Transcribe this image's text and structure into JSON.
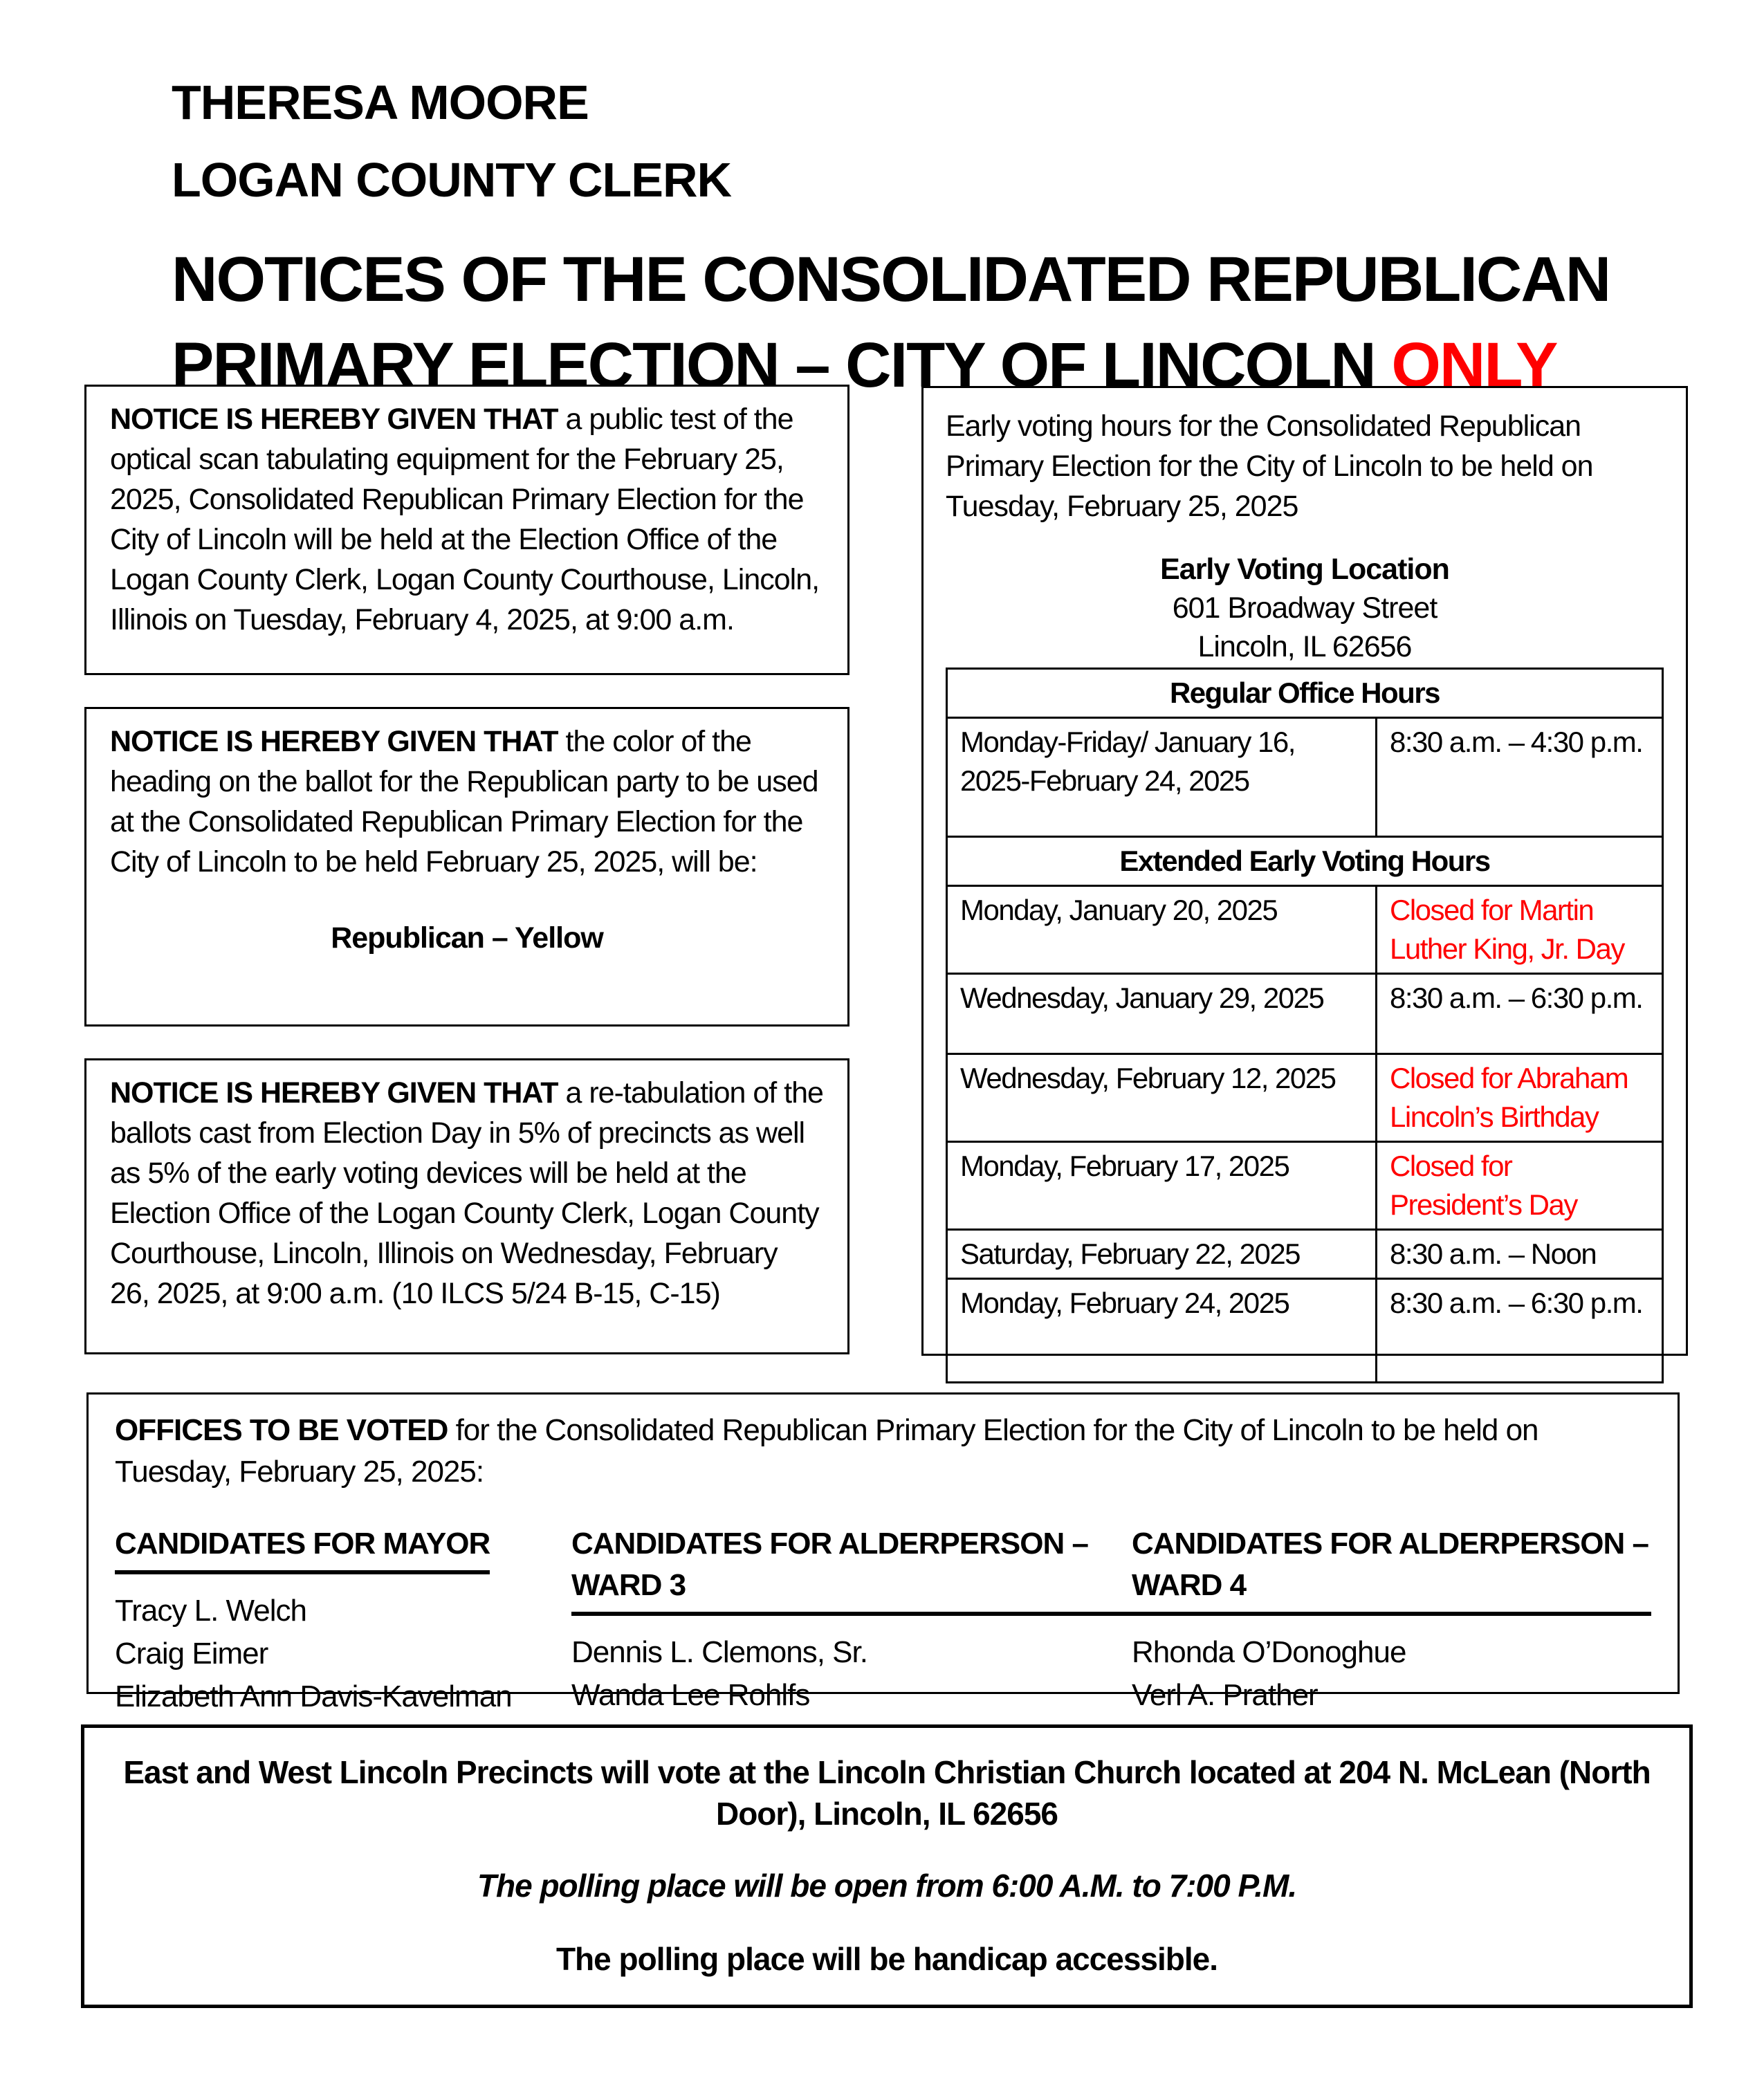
{
  "header": {
    "clerk_name": "THERESA MOORE",
    "clerk_title": "LOGAN COUNTY CLERK",
    "title_line1": "NOTICES OF THE CONSOLIDATED REPUBLICAN",
    "title_line2_black": "PRIMARY ELECTION – CITY OF LINCOLN ",
    "title_line2_red": "ONLY"
  },
  "colors": {
    "accent_red": "#FF0000",
    "text": "#000000"
  },
  "notices": [
    {
      "lead": "NOTICE IS HEREBY GIVEN THAT",
      "body": " a public test of the optical scan tabulating equipment for the February 25, 2025, Consolidated Republican Primary Election for the City of Lincoln will be held at the Election Office of the Logan County Clerk, Logan County Courthouse, Lincoln, Illinois on Tuesday, February 4, 2025, at 9:00 a.m."
    },
    {
      "lead": "NOTICE IS HEREBY GIVEN THAT",
      "body": " the color of the heading on the ballot for the Republican party to be used at the Consolidated Republican Primary Election for the City of Lincoln to be held February 25, 2025, will be:",
      "highlight": "Republican – Yellow"
    },
    {
      "lead": "NOTICE IS HEREBY GIVEN THAT",
      "body": " a re-tabulation of the ballots cast from Election Day in 5% of precincts as well as 5% of the early voting devices will be held at the Election Office of the Logan County Clerk, Logan County Courthouse, Lincoln, Illinois on Wednesday, February 26, 2025, at 9:00 a.m. (10 ILCS 5/24 B-15, C-15)"
    }
  ],
  "early_voting": {
    "intro": "Early voting hours for the Consolidated Republican Primary Election for the City of Lincoln to be held on Tuesday, February 25, 2025",
    "location_label": "Early Voting Location",
    "address_line1": "601 Broadway Street",
    "address_line2": "Lincoln, IL 62656",
    "regular_header": "Regular Office Hours",
    "regular_rows": [
      {
        "date": "Monday-Friday/ January 16, 2025-February 24, 2025",
        "hours": "8:30 a.m. – 4:30 p.m."
      }
    ],
    "extended_header": "Extended Early Voting Hours",
    "extended_rows": [
      {
        "date": "Monday, January 20, 2025",
        "hours": "Closed for Martin Luther King, Jr. Day"
      },
      {
        "date": "Wednesday, January 29, 2025",
        "hours": "8:30 a.m. – 6:30 p.m."
      },
      {
        "date": "Wednesday, February 12, 2025",
        "hours": "Closed for Abraham Lincoln’s Birthday"
      },
      {
        "date": "Monday, February 17, 2025",
        "hours": "Closed for President’s Day"
      },
      {
        "date": "Saturday, February 22, 2025",
        "hours": "8:30 a.m. – Noon"
      },
      {
        "date": "Monday, February 24, 2025",
        "hours": "8:30 a.m. – 6:30 p.m."
      }
    ]
  },
  "offices": {
    "lead": "OFFICES TO BE VOTED",
    "body": " for the Consolidated Republican Primary Election for the City of Lincoln to be held on Tuesday, February 25, 2025:",
    "columns": [
      {
        "header": "CANDIDATES FOR MAYOR",
        "candidates": [
          "Tracy L. Welch",
          "Craig Eimer",
          "Elizabeth Ann Davis-Kavelman"
        ]
      },
      {
        "header": "CANDIDATES FOR ALDERPERSON – WARD 3",
        "candidates": [
          "Dennis L. Clemons, Sr.",
          "Wanda Lee Rohlfs"
        ]
      },
      {
        "header": "CANDIDATES FOR ALDERPERSON – WARD 4",
        "candidates": [
          "Rhonda O’Donoghue",
          "Verl A. Prather"
        ]
      }
    ]
  },
  "polling": {
    "line1": "East and West Lincoln Precincts will vote at the Lincoln Christian Church located at 204 N. McLean (North Door), Lincoln, IL 62656",
    "line2": "The polling place will be open from 6:00 A.M. to 7:00 P.M.",
    "line3": "The polling place will be handicap accessible."
  }
}
